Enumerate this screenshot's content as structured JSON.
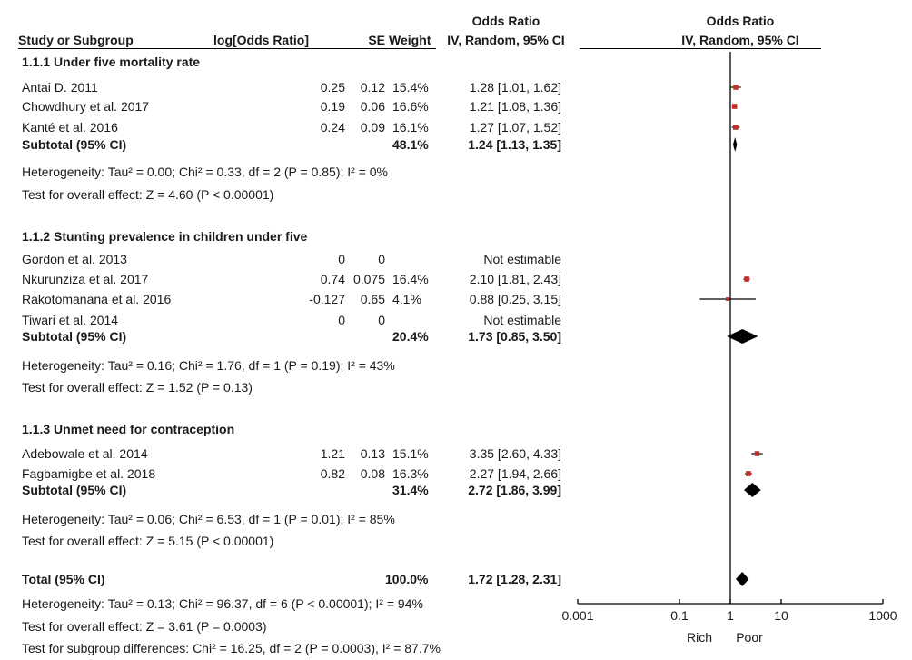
{
  "header": {
    "study": "Study or Subgroup",
    "logor": "log[Odds Ratio]",
    "se": "SE",
    "weight": "Weight",
    "or_title": "Odds Ratio",
    "or_method": "IV, Random, 95% CI",
    "plot_title": "Odds Ratio",
    "plot_method": "IV, Random, 95% CI"
  },
  "rows": [
    {
      "kind": "group",
      "label": "1.1.1 Under five mortality rate"
    },
    {
      "kind": "study",
      "label": "Antai D. 2011",
      "logor": "0.25",
      "se": "0.12",
      "weight": "15.4%",
      "ci_text": "1.28 [1.01, 1.62]"
    },
    {
      "kind": "study",
      "label": "Chowdhury et al. 2017",
      "logor": "0.19",
      "se": "0.06",
      "weight": "16.6%",
      "ci_text": "1.21 [1.08, 1.36]"
    },
    {
      "kind": "study",
      "label": "Kanté et al. 2016",
      "logor": "0.24",
      "se": "0.09",
      "weight": "16.1%",
      "ci_text": "1.27 [1.07, 1.52]"
    },
    {
      "kind": "subtotal",
      "label": "Subtotal (95% CI)",
      "weight": "48.1%",
      "ci_text": "1.24 [1.13, 1.35]"
    },
    {
      "kind": "note",
      "label": "Heterogeneity: Tau² = 0.00; Chi² = 0.33, df = 2 (P = 0.85); I² = 0%"
    },
    {
      "kind": "note",
      "label": "Test for overall effect: Z = 4.60 (P < 0.00001)"
    },
    {
      "kind": "group",
      "label": "1.1.2 Stunting prevalence in children under five"
    },
    {
      "kind": "study",
      "label": "Gordon et al. 2013",
      "logor": "0",
      "se": "0",
      "weight": "",
      "ci_text": "Not estimable"
    },
    {
      "kind": "study",
      "label": "Nkurunziza et al. 2017",
      "logor": "0.74",
      "se": "0.075",
      "weight": "16.4%",
      "ci_text": "2.10 [1.81, 2.43]"
    },
    {
      "kind": "study",
      "label": "Rakotomanana et al. 2016",
      "logor": "-0.127",
      "se": "0.65",
      "weight": "4.1%",
      "ci_text": "0.88 [0.25, 3.15]"
    },
    {
      "kind": "study",
      "label": "Tiwari et al. 2014",
      "logor": "0",
      "se": "0",
      "weight": "",
      "ci_text": "Not estimable"
    },
    {
      "kind": "subtotal",
      "label": "Subtotal (95% CI)",
      "weight": "20.4%",
      "ci_text": "1.73 [0.85, 3.50]"
    },
    {
      "kind": "note",
      "label": "Heterogeneity: Tau² = 0.16; Chi² = 1.76, df = 1 (P = 0.19); I² = 43%"
    },
    {
      "kind": "note",
      "label": "Test for overall effect: Z = 1.52 (P = 0.13)"
    },
    {
      "kind": "group",
      "label": "1.1.3 Unmet need for contraception"
    },
    {
      "kind": "study",
      "label": "Adebowale et al. 2014",
      "logor": "1.21",
      "se": "0.13",
      "weight": "15.1%",
      "ci_text": "3.35 [2.60, 4.33]"
    },
    {
      "kind": "study",
      "label": "Fagbamigbe et al. 2018",
      "logor": "0.82",
      "se": "0.08",
      "weight": "16.3%",
      "ci_text": "2.27 [1.94, 2.66]"
    },
    {
      "kind": "subtotal",
      "label": "Subtotal (95% CI)",
      "weight": "31.4%",
      "ci_text": "2.72 [1.86, 3.99]"
    },
    {
      "kind": "note",
      "label": "Heterogeneity: Tau² = 0.06; Chi² = 6.53, df = 1 (P = 0.01); I² = 85%"
    },
    {
      "kind": "note",
      "label": "Test for overall effect: Z = 5.15 (P < 0.00001)"
    },
    {
      "kind": "total",
      "label": "Total (95% CI)",
      "weight": "100.0%",
      "ci_text": "1.72 [1.28, 2.31]"
    },
    {
      "kind": "note",
      "label": "Heterogeneity: Tau² = 0.13; Chi² = 96.37, df = 6 (P < 0.00001); I² = 94%"
    },
    {
      "kind": "note",
      "label": "Test for overall effect: Z = 3.61 (P = 0.0003)"
    },
    {
      "kind": "note",
      "label": "Test for subgroup differences: Chi² = 16.25, df = 2 (P = 0.0003), I² = 87.7%"
    }
  ],
  "colors": {
    "study_marker": "#c0302a",
    "diamond": "#000000",
    "lines": "#000000"
  },
  "chart_data": {
    "type": "forest",
    "x_scale": "log",
    "x_range": [
      0.001,
      1000
    ],
    "x_ticks": [
      "0.001",
      "0.1",
      "1",
      "10",
      "1000"
    ],
    "x_tick_values": [
      0.001,
      0.1,
      1,
      10,
      1000
    ],
    "null_line": 1,
    "direction_labels": {
      "left": "Rich",
      "right": "Poor"
    },
    "studies": [
      {
        "label": "Antai D. 2011",
        "or": 1.28,
        "lo": 1.01,
        "hi": 1.62,
        "weight": 15.4
      },
      {
        "label": "Chowdhury et al. 2017",
        "or": 1.21,
        "lo": 1.08,
        "hi": 1.36,
        "weight": 16.6
      },
      {
        "label": "Kanté et al. 2016",
        "or": 1.27,
        "lo": 1.07,
        "hi": 1.52,
        "weight": 16.1
      },
      {
        "label": "Gordon et al. 2013",
        "or": null,
        "lo": null,
        "hi": null,
        "weight": null
      },
      {
        "label": "Nkurunziza et al. 2017",
        "or": 2.1,
        "lo": 1.81,
        "hi": 2.43,
        "weight": 16.4
      },
      {
        "label": "Rakotomanana et al. 2016",
        "or": 0.88,
        "lo": 0.25,
        "hi": 3.15,
        "weight": 4.1
      },
      {
        "label": "Tiwari et al. 2014",
        "or": null,
        "lo": null,
        "hi": null,
        "weight": null
      },
      {
        "label": "Adebowale et al. 2014",
        "or": 3.35,
        "lo": 2.6,
        "hi": 4.33,
        "weight": 15.1
      },
      {
        "label": "Fagbamigbe et al. 2018",
        "or": 2.27,
        "lo": 1.94,
        "hi": 2.66,
        "weight": 16.3
      }
    ],
    "pooled": [
      {
        "label": "Subtotal (95% CI)",
        "group": "1.1.1",
        "or": 1.24,
        "lo": 1.13,
        "hi": 1.35
      },
      {
        "label": "Subtotal (95% CI)",
        "group": "1.1.2",
        "or": 1.73,
        "lo": 0.85,
        "hi": 3.5
      },
      {
        "label": "Subtotal (95% CI)",
        "group": "1.1.3",
        "or": 2.72,
        "lo": 1.86,
        "hi": 3.99
      },
      {
        "label": "Total (95% CI)",
        "group": "overall",
        "or": 1.72,
        "lo": 1.28,
        "hi": 2.31
      }
    ]
  }
}
